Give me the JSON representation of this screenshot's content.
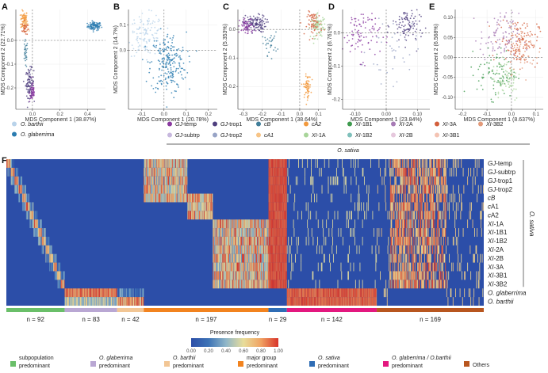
{
  "colors": {
    "barthii": "#b9d3ea",
    "glaberrima": "#2b7cb0",
    "GJ-temp": "#8a3aa0",
    "GJ-trop1": "#4f3f7f",
    "cB": "#417e9a",
    "cA2": "#f29a3e",
    "XI-1B1": "#3e9a4e",
    "XI-2A": "#a77bb5",
    "XI-3A": "#d35f3c",
    "XI-3B2": "#e39a7a",
    "GJ-subtrp": "#c7b8de",
    "GJ-trop2": "#98a4c6",
    "cA1": "#f7c486",
    "XI-1A": "#a8d59a",
    "XI-1B2": "#7fc0bb",
    "XI-2B": "#e6c8dd",
    "XI-3B1": "#f4c3b3"
  },
  "mds_panels": [
    {
      "letter": "A",
      "xlabel": "MDS Component 1 (38.87%)",
      "ylabel": "MDS Component 2 (22.71%)",
      "xticks": [
        "0.0",
        "0.2",
        "0.4"
      ],
      "xtick_vals": [
        0.0,
        0.2,
        0.4
      ],
      "yticks": [
        "0.0",
        "-0.1",
        "-0.2"
      ],
      "ytick_vals": [
        0.0,
        -0.1,
        -0.2
      ],
      "xlim": [
        -0.12,
        0.53
      ],
      "ylim": [
        -0.29,
        0.13
      ],
      "clusters": [
        {
          "group": "glaberrima",
          "cx": 0.45,
          "cy": 0.06,
          "sx": 0.025,
          "sy": 0.009,
          "n": 90
        },
        {
          "group": "cA2",
          "cx": -0.06,
          "cy": 0.085,
          "sx": 0.012,
          "sy": 0.02,
          "n": 80
        },
        {
          "group": "cA1",
          "cx": -0.05,
          "cy": 0.07,
          "sx": 0.01,
          "sy": 0.015,
          "n": 30
        },
        {
          "group": "XI-3A",
          "cx": -0.055,
          "cy": 0.05,
          "sx": 0.01,
          "sy": 0.015,
          "n": 30
        },
        {
          "group": "GJ-trop1",
          "cx": -0.02,
          "cy": -0.18,
          "sx": 0.015,
          "sy": 0.03,
          "n": 90
        },
        {
          "group": "GJ-temp",
          "cx": 0.0,
          "cy": -0.22,
          "sx": 0.01,
          "sy": 0.02,
          "n": 50
        },
        {
          "group": "cB",
          "cx": -0.05,
          "cy": -0.06,
          "sx": 0.008,
          "sy": 0.03,
          "n": 30
        }
      ]
    },
    {
      "letter": "B",
      "xlabel": "MDS Component 1 (20.78%)",
      "ylabel": "MDS Component 2 (14.7%)",
      "xticks": [
        "-0.1",
        "0.0",
        "0.1",
        "0.2"
      ],
      "xtick_vals": [
        -0.1,
        0.0,
        0.1,
        0.2
      ],
      "yticks": [
        "0.1",
        "0.0"
      ],
      "ytick_vals": [
        0.1,
        0.0
      ],
      "xlim": [
        -0.16,
        0.24
      ],
      "ylim": [
        -0.23,
        0.16
      ],
      "clusters": [
        {
          "group": "barthii",
          "cx": -0.08,
          "cy": 0.06,
          "sx": 0.04,
          "sy": 0.04,
          "n": 120
        },
        {
          "group": "glaberrima",
          "cx": 0.02,
          "cy": -0.05,
          "sx": 0.04,
          "sy": 0.06,
          "n": 220
        }
      ]
    },
    {
      "letter": "C",
      "xlabel": "MDS Component 1 (38.64%)",
      "ylabel": "MDS Component 2 (5.353%)",
      "xticks": [
        "-0.3",
        "-0.2",
        "-0.1",
        "0.0",
        "0.1"
      ],
      "xtick_vals": [
        -0.3,
        -0.2,
        -0.1,
        0.0,
        0.1
      ],
      "yticks": [
        "0.0",
        "-0.1",
        "-0.2"
      ],
      "ytick_vals": [
        0.0,
        -0.1,
        -0.2
      ],
      "xlim": [
        -0.33,
        0.14
      ],
      "ylim": [
        -0.28,
        0.07
      ],
      "clusters": [
        {
          "group": "GJ-trop1",
          "cx": -0.24,
          "cy": 0.02,
          "sx": 0.03,
          "sy": 0.015,
          "n": 120
        },
        {
          "group": "GJ-temp",
          "cx": -0.28,
          "cy": 0.01,
          "sx": 0.02,
          "sy": 0.015,
          "n": 60
        },
        {
          "group": "cB",
          "cx": -0.16,
          "cy": -0.05,
          "sx": 0.02,
          "sy": 0.02,
          "n": 30
        },
        {
          "group": "cA2",
          "cx": 0.04,
          "cy": -0.2,
          "sx": 0.01,
          "sy": 0.02,
          "n": 60
        },
        {
          "group": "XI-3A",
          "cx": 0.08,
          "cy": 0.02,
          "sx": 0.02,
          "sy": 0.02,
          "n": 80
        },
        {
          "group": "XI-1A",
          "cx": 0.1,
          "cy": 0.01,
          "sx": 0.02,
          "sy": 0.02,
          "n": 70
        }
      ]
    },
    {
      "letter": "D",
      "xlabel": "MDS Component 1 (23.84%)",
      "ylabel": "MDS Component 2 (6.761%)",
      "xticks": [
        "-0.10",
        "0.00",
        "0.10"
      ],
      "xtick_vals": [
        -0.1,
        0.0,
        0.1
      ],
      "yticks": [
        "0.0",
        "-0.1",
        "-0.2"
      ],
      "ytick_vals": [
        0.0,
        -0.1,
        -0.2
      ],
      "xlim": [
        -0.14,
        0.14
      ],
      "ylim": [
        -0.23,
        0.07
      ],
      "clusters": [
        {
          "group": "GJ-temp",
          "cx": -0.08,
          "cy": 0.0,
          "sx": 0.03,
          "sy": 0.04,
          "n": 90
        },
        {
          "group": "GJ-trop1",
          "cx": 0.07,
          "cy": 0.02,
          "sx": 0.025,
          "sy": 0.03,
          "n": 100
        },
        {
          "group": "GJ-trop2",
          "cx": 0.02,
          "cy": -0.05,
          "sx": 0.04,
          "sy": 0.05,
          "n": 40
        }
      ]
    },
    {
      "letter": "E",
      "xlabel": "MDS Component 1 (8.637%)",
      "ylabel": "MDS Component 2 (6.568%)",
      "xticks": [
        "-0.2",
        "-0.1",
        "0.0",
        "0.1"
      ],
      "xtick_vals": [
        -0.2,
        -0.1,
        0.0,
        0.1
      ],
      "yticks": [
        "0.10",
        "0.05",
        "0.00",
        "-0.05",
        "-0.10"
      ],
      "ytick_vals": [
        0.1,
        0.05,
        0.0,
        -0.05,
        -0.1
      ],
      "xlim": [
        -0.23,
        0.13
      ],
      "ylim": [
        -0.13,
        0.12
      ],
      "clusters": [
        {
          "group": "XI-3A",
          "cx": 0.03,
          "cy": 0.04,
          "sx": 0.04,
          "sy": 0.03,
          "n": 120
        },
        {
          "group": "XI-2A",
          "cx": -0.05,
          "cy": 0.05,
          "sx": 0.04,
          "sy": 0.03,
          "n": 90
        },
        {
          "group": "XI-1B1",
          "cx": -0.06,
          "cy": -0.04,
          "sx": 0.04,
          "sy": 0.03,
          "n": 90
        },
        {
          "group": "XI-1A",
          "cx": -0.02,
          "cy": -0.05,
          "sx": 0.03,
          "sy": 0.03,
          "n": 60
        },
        {
          "group": "XI-3B2",
          "cx": 0.05,
          "cy": 0.02,
          "sx": 0.03,
          "sy": 0.03,
          "n": 60
        }
      ]
    }
  ],
  "legend": {
    "species": [
      {
        "label": "O. barthii",
        "color_key": "barthii",
        "italic": true
      },
      {
        "label": "O. glaberrima",
        "color_key": "glaberrima",
        "italic": true
      }
    ],
    "sativa_row1": [
      {
        "prefix": "GJ",
        "suffix": "-temp",
        "color_key": "GJ-temp"
      },
      {
        "prefix": "GJ",
        "suffix": "-trop1",
        "color_key": "GJ-trop1"
      },
      {
        "prefix": "",
        "suffix": "cB",
        "color_key": "cB",
        "italic_all": true
      },
      {
        "prefix": "",
        "suffix": "cA2",
        "color_key": "cA2",
        "italic_all": true
      },
      {
        "prefix": "XI",
        "suffix": "-1B1",
        "color_key": "XI-1B1"
      },
      {
        "prefix": "XI",
        "suffix": "-2A",
        "color_key": "XI-2A"
      },
      {
        "prefix": "XI",
        "suffix": "-3A",
        "color_key": "XI-3A"
      },
      {
        "prefix": "XI",
        "suffix": "-3B2",
        "color_key": "XI-3B2"
      }
    ],
    "sativa_row2": [
      {
        "prefix": "GJ",
        "suffix": "-subtrp",
        "color_key": "GJ-subtrp"
      },
      {
        "prefix": "GJ",
        "suffix": "-trop2",
        "color_key": "GJ-trop2"
      },
      {
        "prefix": "",
        "suffix": "cA1",
        "color_key": "cA1",
        "italic_all": true
      },
      {
        "prefix": "XI",
        "suffix": "-1A",
        "color_key": "XI-1A"
      },
      {
        "prefix": "XI",
        "suffix": "-1B2",
        "color_key": "XI-1B2"
      },
      {
        "prefix": "XI",
        "suffix": "-2B",
        "color_key": "XI-2B"
      },
      {
        "prefix": "XI",
        "suffix": "-3B1",
        "color_key": "XI-3B1"
      }
    ],
    "sativa_label": "O. sativa"
  },
  "heatmap": {
    "letter": "F",
    "rows": [
      {
        "prefix": "GJ",
        "suffix": "-temp"
      },
      {
        "prefix": "GJ",
        "suffix": "-subtrp"
      },
      {
        "prefix": "GJ",
        "suffix": "-trop1"
      },
      {
        "prefix": "GJ",
        "suffix": "-trop2"
      },
      {
        "prefix": "",
        "suffix": "cB",
        "italic_all": true
      },
      {
        "prefix": "",
        "suffix": "cA1",
        "italic_first": "c"
      },
      {
        "prefix": "",
        "suffix": "cA2",
        "italic_first": "c"
      },
      {
        "prefix": "XI",
        "suffix": "-1A"
      },
      {
        "prefix": "XI",
        "suffix": "-1B1"
      },
      {
        "prefix": "XI",
        "suffix": "-1B2"
      },
      {
        "prefix": "XI",
        "suffix": "-2A"
      },
      {
        "prefix": "XI",
        "suffix": "-2B"
      },
      {
        "prefix": "XI",
        "suffix": "-3A"
      },
      {
        "prefix": "XI",
        "suffix": "-3B1"
      },
      {
        "prefix": "XI",
        "suffix": "-3B2"
      },
      {
        "prefix": "",
        "suffix": "O. glaberrima",
        "italic_all": true
      },
      {
        "prefix": "",
        "suffix": "O. barthii",
        "italic_all": true
      }
    ],
    "side_label": "O. sativa",
    "segments": [
      {
        "count_label": "n = 92",
        "n": 92,
        "color": "#6abf69",
        "kind": "subpop"
      },
      {
        "count_label": "n = 83",
        "n": 83,
        "color": "#b9a7d3",
        "kind": "glab"
      },
      {
        "count_label": "n = 42",
        "n": 42,
        "color": "#f2c695",
        "kind": "barth"
      },
      {
        "count_label": "n = 197",
        "n": 197,
        "color": "#f2831f",
        "kind": "major"
      },
      {
        "count_label": "n = 29",
        "n": 29,
        "color": "#2f6db5",
        "kind": "sativa"
      },
      {
        "count_label": "n = 142",
        "n": 142,
        "color": "#e3187f",
        "kind": "glabbarth"
      },
      {
        "count_label": "n = 169",
        "n": 169,
        "color": "#b8561f",
        "kind": "others"
      }
    ],
    "colorbar": {
      "title": "Presence frequency",
      "ticks": [
        "0.00",
        "0.20",
        "0.40",
        "0.60",
        "0.80",
        "1.00"
      ],
      "stops": [
        "#2c4ea8",
        "#3d73b6",
        "#8fb6c8",
        "#e8dd9a",
        "#f0a262",
        "#d8342a"
      ]
    }
  },
  "categories": [
    {
      "label": "subpopulation predominant",
      "italic": false,
      "color": "#6abf69"
    },
    {
      "label": "O. glaberrima predominant",
      "italic_part": "O. glaberrima",
      "color": "#b9a7d3"
    },
    {
      "label": "O. barthii predominant",
      "italic_part": "O. barthii",
      "color": "#f2c695"
    },
    {
      "label": "major group predominant",
      "italic": false,
      "color": "#f2831f"
    },
    {
      "label": "O. sativa predominant",
      "italic_part": "O. sativa",
      "color": "#2f6db5"
    },
    {
      "label": "O. glaberrima / O.barthii predominant",
      "italic_part": "O. glaberrima / O.barthii",
      "color": "#e3187f"
    },
    {
      "label": "Others",
      "italic": false,
      "color": "#b8561f"
    }
  ]
}
